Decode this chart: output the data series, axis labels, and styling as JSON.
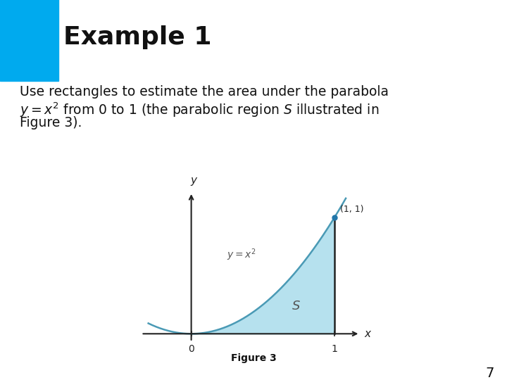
{
  "title": "Example 1",
  "title_fontsize": 26,
  "title_bg_color": "#f5edda",
  "title_accent_color": "#00aaee",
  "body_fontsize": 13.5,
  "figure_caption": "Figure 3",
  "curve_color": "#4a9ab5",
  "fill_color": "#aadcec",
  "fill_alpha": 0.85,
  "axes_color": "#222222",
  "dot_color": "#2277aa",
  "page_number": "7",
  "bg_color": "#ffffff",
  "teal_line_color": "#a0c8c0",
  "text_color": "#111111",
  "graph_eq_color": "#555555"
}
